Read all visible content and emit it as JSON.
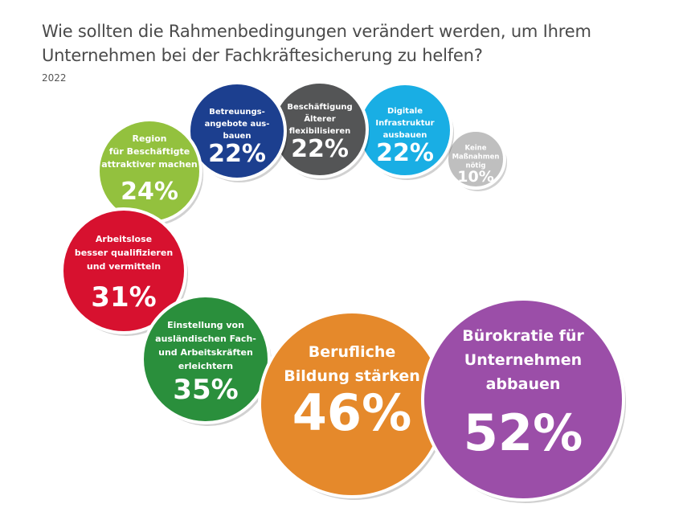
{
  "title": "Wie sollten die Rahmenbedingungen verändert werden, um Ihrem Unternehmen bei der Fachkräftesicherung zu helfen?",
  "subtitle": "2022",
  "chart_data": {
    "type": "bubble",
    "title": "Wie sollten die Rahmenbedingungen verändert werden, um Ihrem Unternehmen bei der Fachkräftesicherung zu helfen?",
    "subtitle": "2022",
    "unit": "%",
    "items": [
      {
        "label_lines": [
          "Bürokratie für",
          "Unternehmen",
          "abbauen"
        ],
        "value": 52,
        "value_label": "52%",
        "color": "#9b4ea8"
      },
      {
        "label_lines": [
          "Berufliche",
          "Bildung stärken"
        ],
        "value": 46,
        "value_label": "46%",
        "color": "#e5892b"
      },
      {
        "label_lines": [
          "Einstellung von",
          "ausländischen Fach-",
          "und Arbeitskräften",
          "erleichtern"
        ],
        "value": 35,
        "value_label": "35%",
        "color": "#2a8f3c"
      },
      {
        "label_lines": [
          "Arbeitslose",
          "besser qualifizieren",
          "und vermitteln"
        ],
        "value": 31,
        "value_label": "31%",
        "color": "#d7112f"
      },
      {
        "label_lines": [
          "Region",
          "für Beschäftigte",
          "attraktiver machen"
        ],
        "value": 24,
        "value_label": "24%",
        "color": "#93c13e"
      },
      {
        "label_lines": [
          "Betreuungs-",
          "angebote aus-",
          "bauen"
        ],
        "value": 22,
        "value_label": "22%",
        "color": "#1c3f8f"
      },
      {
        "label_lines": [
          "Beschäftigung",
          "Älterer",
          "flexibilisieren"
        ],
        "value": 22,
        "value_label": "22%",
        "color": "#545556"
      },
      {
        "label_lines": [
          "Digitale",
          "Infrastruktur",
          "ausbauen"
        ],
        "value": 22,
        "value_label": "22%",
        "color": "#19aee4"
      },
      {
        "label_lines": [
          "Keine",
          "Maßnahmen",
          "nötig"
        ],
        "value": 10,
        "value_label": "10%",
        "color": "#bfbfbf",
        "text_color": "#333333"
      }
    ]
  }
}
